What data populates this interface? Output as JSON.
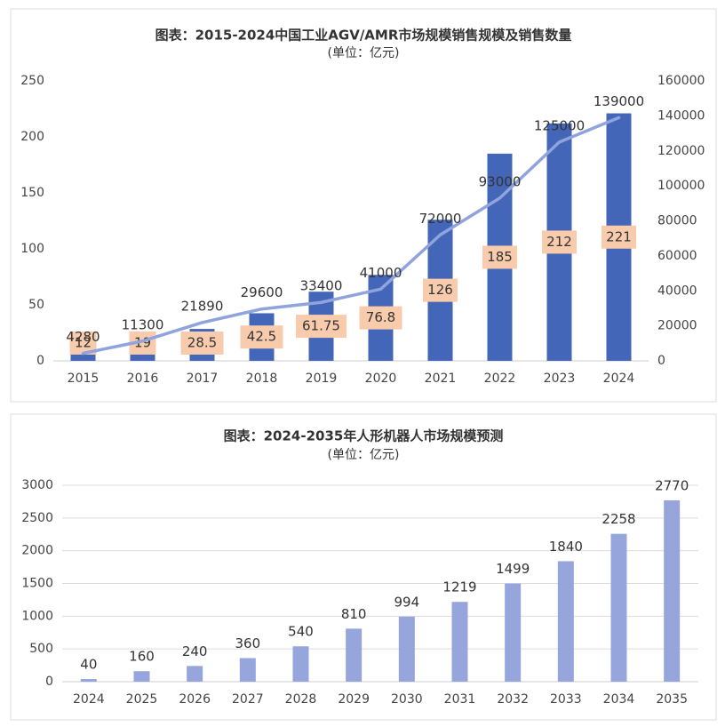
{
  "chart_data": [
    {
      "type": "bar",
      "title": "图表：2015-2024中国工业AGV/AMR市场规模销售规模及销售数量",
      "subtitle": "(单位：亿元)",
      "categories": [
        "2015",
        "2016",
        "2017",
        "2018",
        "2019",
        "2020",
        "2021",
        "2022",
        "2023",
        "2024"
      ],
      "series": [
        {
          "type": "bar",
          "color": "#4466b8",
          "values": [
            12,
            19,
            28.5,
            42.5,
            61.75,
            76.8,
            126,
            185,
            212,
            221
          ]
        },
        {
          "type": "line",
          "axis": "y2",
          "color": "#8fa3dc",
          "values": [
            4280,
            11300,
            21890,
            29600,
            33400,
            41000,
            72000,
            93000,
            125000,
            139000
          ]
        }
      ],
      "ylim": [
        0,
        250
      ],
      "yticks": [
        0,
        50,
        100,
        150,
        200,
        250
      ],
      "y2lim": [
        0,
        160000
      ],
      "y2ticks": [
        0,
        20000,
        40000,
        60000,
        80000,
        100000,
        120000,
        140000,
        160000
      ],
      "grid": false
    },
    {
      "type": "bar",
      "title": "图表：2024-2035年人形机器人市场规模预测",
      "subtitle": "(单位：亿元)",
      "categories": [
        "2024",
        "2025",
        "2026",
        "2027",
        "2028",
        "2029",
        "2030",
        "2031",
        "2032",
        "2033",
        "2034",
        "2035"
      ],
      "series": [
        {
          "type": "bar",
          "color": "#96a6dc",
          "values": [
            40,
            160,
            240,
            360,
            540,
            810,
            994,
            1219,
            1499,
            1840,
            2258,
            2770
          ]
        }
      ],
      "ylim": [
        0,
        3000
      ],
      "yticks": [
        0,
        500,
        1000,
        1500,
        2000,
        2500,
        3000
      ],
      "grid": true
    }
  ]
}
